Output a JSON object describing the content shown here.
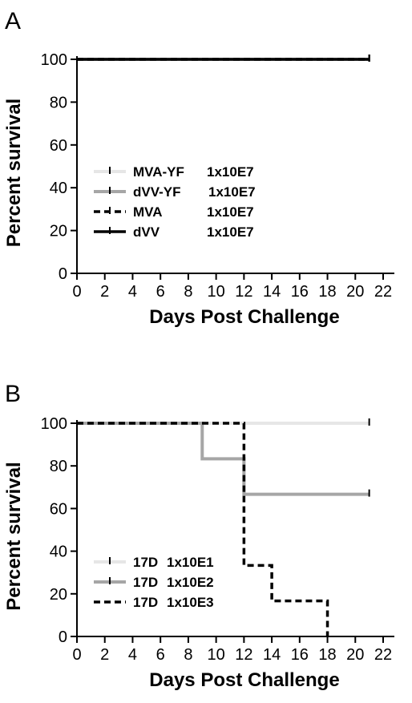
{
  "chart_data": [
    {
      "panel": "A",
      "type": "line",
      "step": true,
      "xlabel": "Days Post Challenge",
      "ylabel": "Percent survival",
      "xlim": [
        0,
        22
      ],
      "ylim": [
        0,
        100
      ],
      "xticks": [
        0,
        2,
        4,
        6,
        8,
        10,
        12,
        14,
        16,
        18,
        20,
        22
      ],
      "yticks": [
        0,
        20,
        40,
        60,
        80,
        100
      ],
      "grid": false,
      "legend_position": "left-bottom",
      "series": [
        {
          "name": "MVA-YF",
          "dose": "1x10E7",
          "color": "#e6e6e6",
          "dash": "solid",
          "x": [
            0,
            21
          ],
          "y": [
            100,
            100
          ],
          "censor": [
            21
          ]
        },
        {
          "name": "dVV-YF",
          "dose": "1x10E7",
          "color": "#a6a6a6",
          "dash": "solid",
          "x": [
            0,
            21
          ],
          "y": [
            100,
            100
          ],
          "censor": [
            21
          ]
        },
        {
          "name": "MVA",
          "dose": "1x10E7",
          "color": "#000000",
          "dash": "dashed",
          "x": [
            0,
            21
          ],
          "y": [
            100,
            100
          ],
          "censor": [
            21
          ]
        },
        {
          "name": "dVV",
          "dose": "1x10E7",
          "color": "#000000",
          "dash": "solid",
          "x": [
            0,
            21
          ],
          "y": [
            100,
            100
          ],
          "censor": [
            21
          ]
        }
      ]
    },
    {
      "panel": "B",
      "type": "line",
      "step": true,
      "xlabel": "Days Post Challenge",
      "ylabel": "Percent survival",
      "xlim": [
        0,
        22
      ],
      "ylim": [
        0,
        100
      ],
      "xticks": [
        0,
        2,
        4,
        6,
        8,
        10,
        12,
        14,
        16,
        18,
        20,
        22
      ],
      "yticks": [
        0,
        20,
        40,
        60,
        80,
        100
      ],
      "grid": false,
      "legend_position": "left-bottom",
      "series": [
        {
          "name": "17D",
          "dose": "1x10E1",
          "color": "#e6e6e6",
          "dash": "solid",
          "x": [
            0,
            21
          ],
          "y": [
            100,
            100
          ],
          "censor": [
            21
          ]
        },
        {
          "name": "17D",
          "dose": "1x10E2",
          "color": "#a6a6a6",
          "dash": "solid",
          "x": [
            0,
            9,
            12,
            21
          ],
          "y": [
            100,
            83.3,
            66.7,
            66.7
          ],
          "censor": [
            21
          ]
        },
        {
          "name": "17D",
          "dose": "1x10E3",
          "color": "#000000",
          "dash": "dashed",
          "x": [
            0,
            12,
            14,
            18
          ],
          "y": [
            100,
            33.3,
            16.7,
            0
          ],
          "censor": []
        }
      ]
    }
  ]
}
